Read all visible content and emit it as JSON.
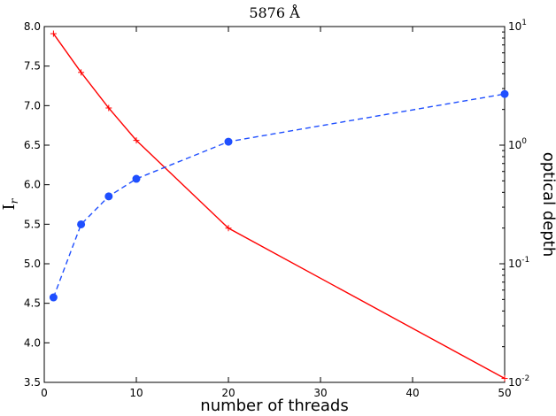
{
  "chart_data": {
    "type": "line",
    "title": "5876 Å",
    "xlabel": "number of threads",
    "ylabel_left": "I",
    "ylabel_left_subscript": "r",
    "ylabel_right": "optical depth",
    "xlim": [
      0,
      50
    ],
    "ylim_left": [
      3.5,
      8.0
    ],
    "ylim_right": [
      0.01,
      10
    ],
    "y_right_scale": "log",
    "x_ticks": [
      "0",
      "10",
      "20",
      "30",
      "40",
      "50"
    ],
    "y_left_ticks": [
      "3.5",
      "4.0",
      "4.5",
      "5.0",
      "5.5",
      "6.0",
      "6.5",
      "7.0",
      "7.5",
      "8.0"
    ],
    "y_right_ticks": [
      {
        "base": "10",
        "exp": "-2"
      },
      {
        "base": "10",
        "exp": "-1"
      },
      {
        "base": "10",
        "exp": "0"
      },
      {
        "base": "10",
        "exp": "1"
      }
    ],
    "grid": false,
    "series": [
      {
        "axis": "left",
        "color": "#ff0000",
        "line_style": "solid",
        "marker": "plus",
        "x": [
          1,
          4,
          7,
          10,
          20,
          50
        ],
        "y": [
          7.91,
          7.42,
          6.97,
          6.56,
          5.45,
          3.55
        ]
      },
      {
        "axis": "right",
        "color": "#1f4fff",
        "line_style": "dashed",
        "marker": "circle",
        "x": [
          1,
          4,
          7,
          10,
          20,
          50
        ],
        "y": [
          0.052,
          0.215,
          0.37,
          0.52,
          1.07,
          2.7
        ]
      }
    ]
  }
}
